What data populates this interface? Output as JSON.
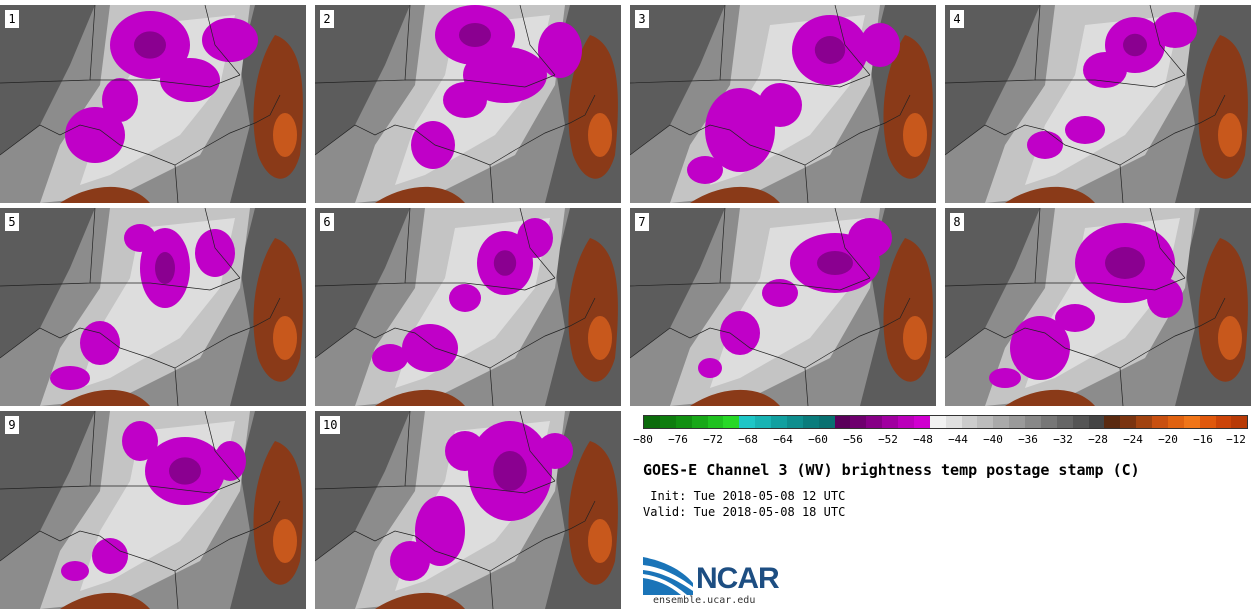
{
  "stamps": [
    {
      "label": "1"
    },
    {
      "label": "2"
    },
    {
      "label": "3"
    },
    {
      "label": "4"
    },
    {
      "label": "5"
    },
    {
      "label": "6"
    },
    {
      "label": "7"
    },
    {
      "label": "8"
    },
    {
      "label": "9"
    },
    {
      "label": "10"
    }
  ],
  "colorbar": {
    "tick_labels": [
      "−80",
      "−76",
      "−72",
      "−68",
      "−64",
      "−60",
      "−56",
      "−52",
      "−48",
      "−44",
      "−40",
      "−36",
      "−32",
      "−28",
      "−24",
      "−20",
      "−16",
      "−12"
    ],
    "colors": [
      "#0b6b0b",
      "#0e7d0e",
      "#119011",
      "#18a818",
      "#1fc11f",
      "#27d827",
      "#1ec6c6",
      "#18b3b3",
      "#12a0a0",
      "#0e8e8e",
      "#0a7c7c",
      "#087070",
      "#5a005a",
      "#6e006e",
      "#860086",
      "#a000a0",
      "#ba00ba",
      "#d000d0",
      "#f2f2f2",
      "#e0e0e0",
      "#cccccc",
      "#bcbcbc",
      "#aaaaaa",
      "#9a9a9a",
      "#888888",
      "#777777",
      "#666666",
      "#555555",
      "#444444",
      "#5a2a10",
      "#7a3410",
      "#a14310",
      "#c85010",
      "#e06210",
      "#f07518",
      "#e0580c",
      "#cc4408",
      "#b83a06"
    ]
  },
  "map_colors": {
    "dark_gray": "#5c5c5c",
    "mid_gray": "#8c8c8c",
    "light_gray": "#c4c4c4",
    "white": "#eeeeee",
    "magenta": "#c000c8",
    "deep_magenta": "#8a0090",
    "brown": "#8a3a18",
    "orange": "#c8581c"
  },
  "title": "GOES-E Channel 3 (WV) brightness temp postage stamp (C)",
  "init": " Init: Tue 2018-05-08 12 UTC",
  "valid": "Valid: Tue 2018-05-08 18 UTC",
  "logo": {
    "text": "NCAR",
    "url": "ensemble.ucar.edu"
  }
}
